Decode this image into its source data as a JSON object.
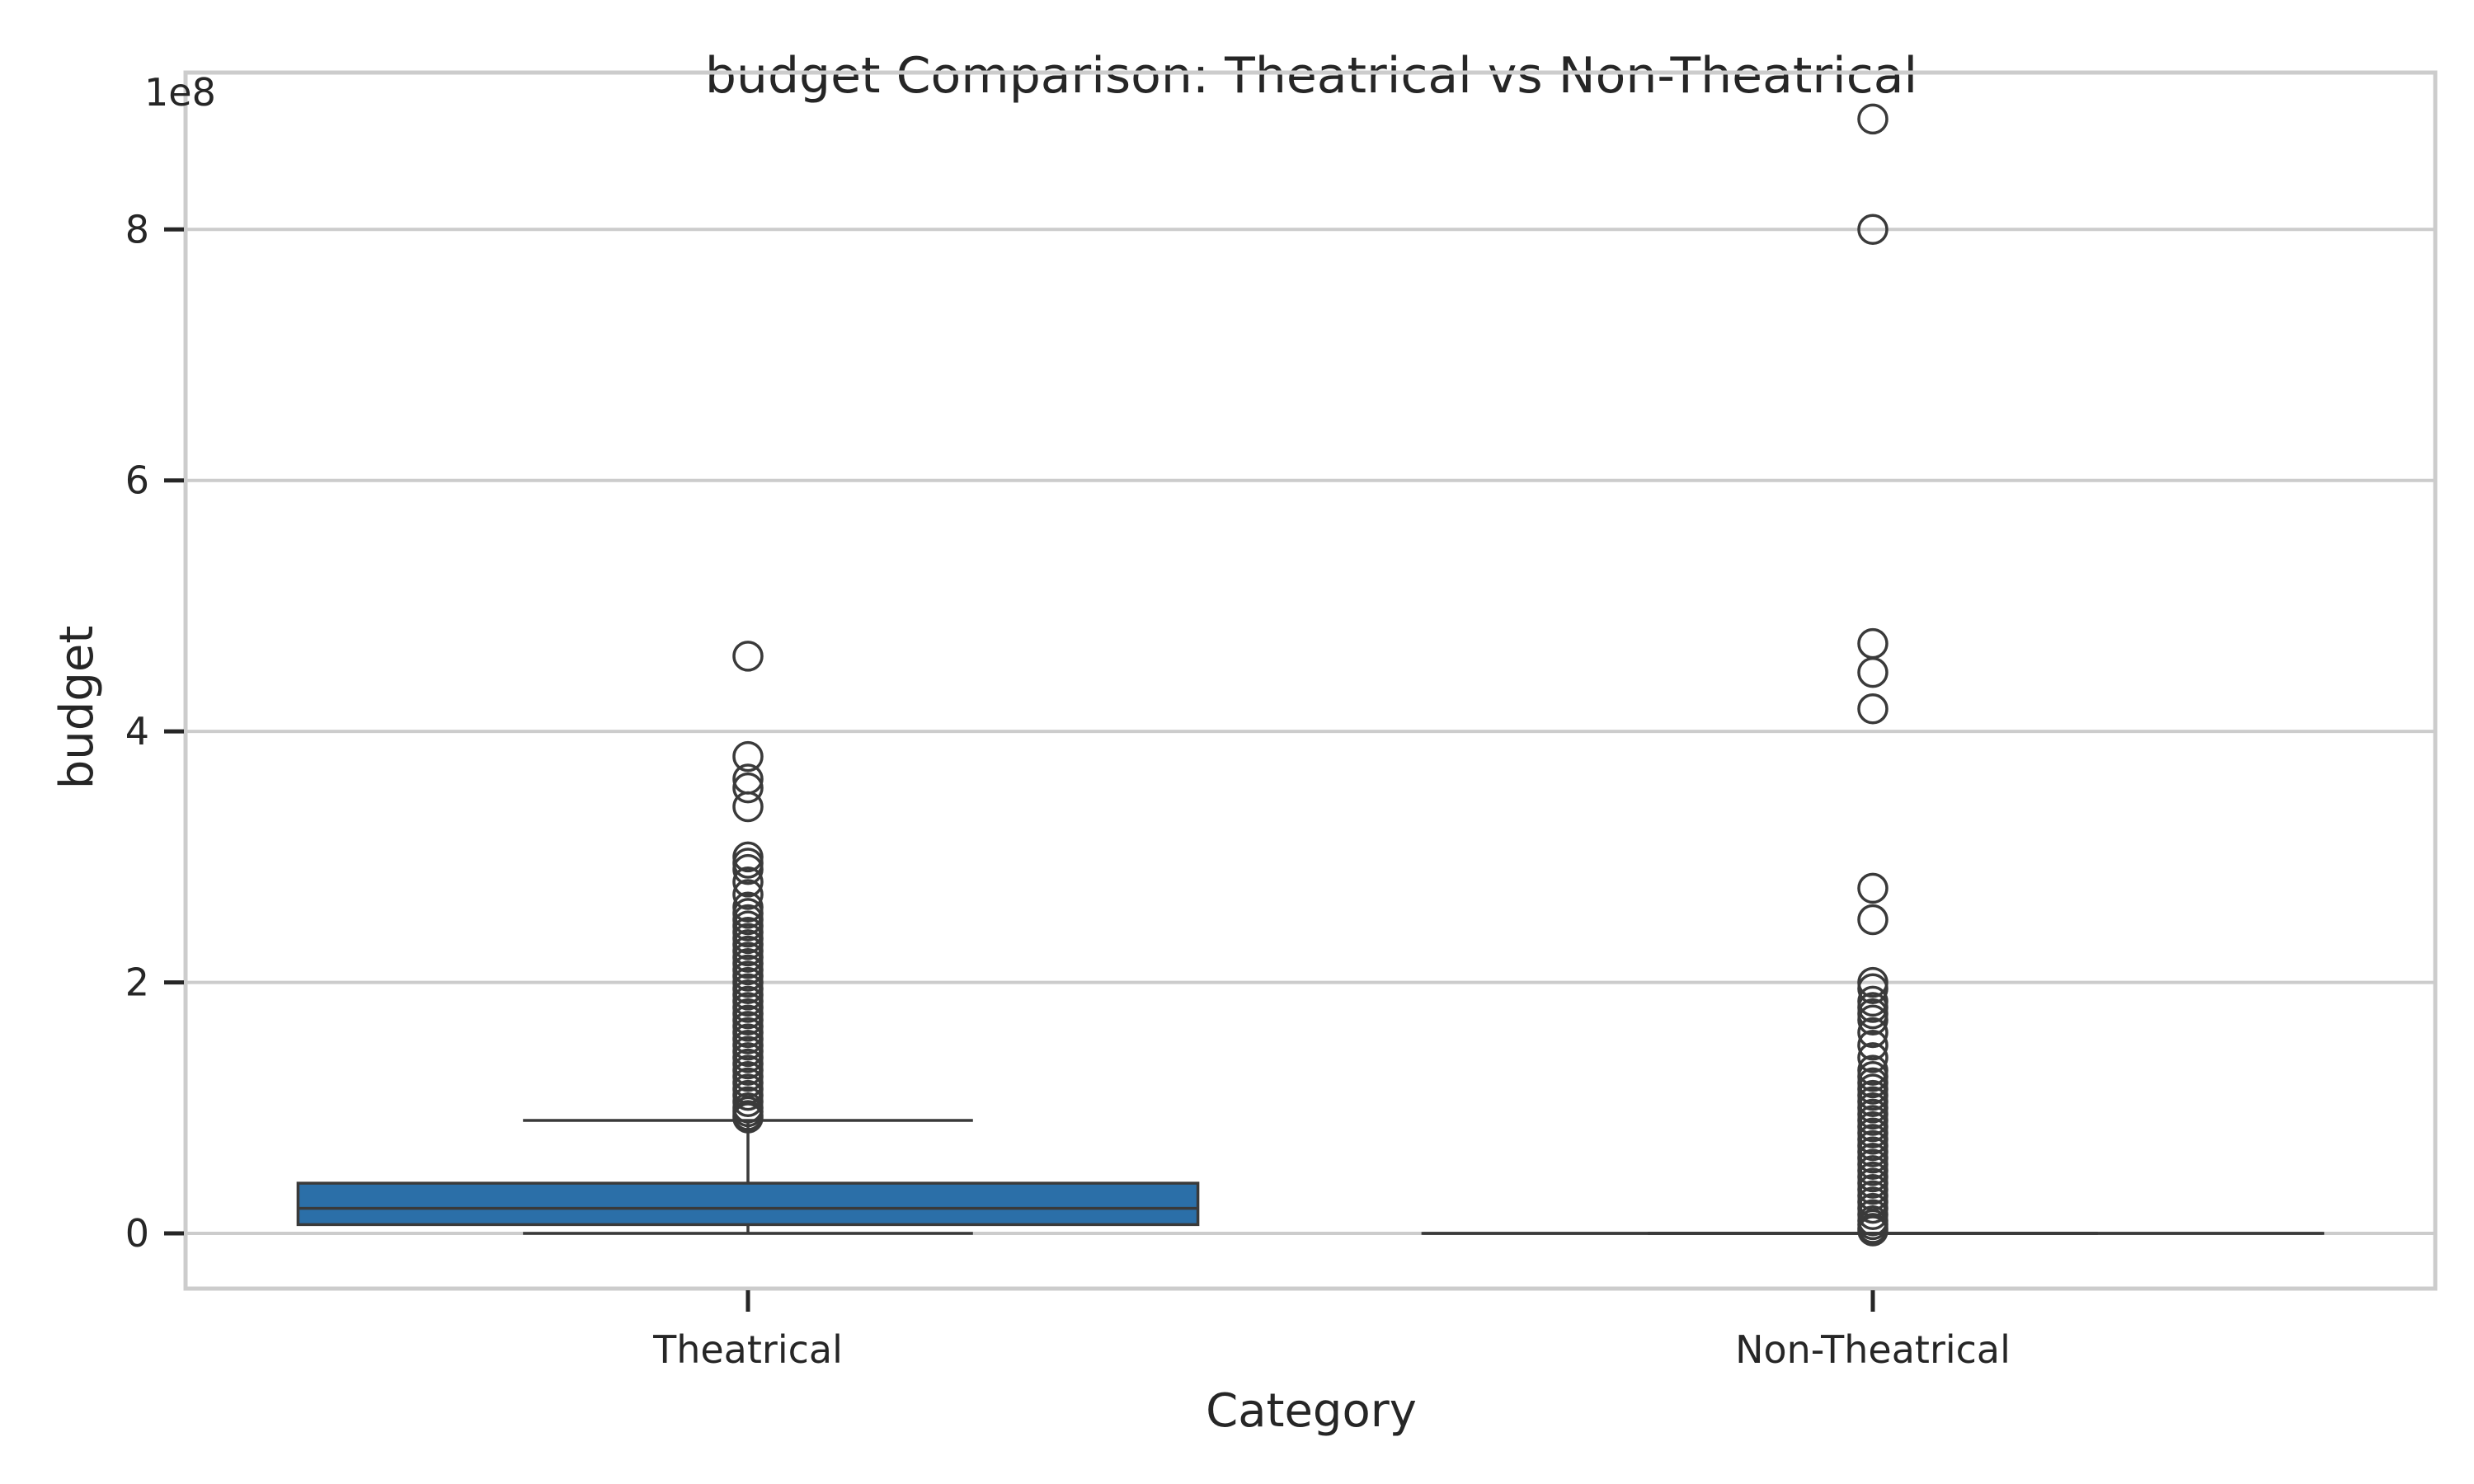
{
  "chart_data": {
    "type": "box",
    "title": "budget Comparison: Theatrical vs Non-Theatrical",
    "xlabel": "Category",
    "ylabel": "budget",
    "y_offset_label": "1e8",
    "y_scale": 100000000,
    "ylim": [
      -0.44,
      9.25
    ],
    "yticks": [
      0,
      2,
      4,
      6,
      8
    ],
    "grid": true,
    "categories": [
      "Theatrical",
      "Non-Theatrical"
    ],
    "boxes": [
      {
        "category": "Theatrical",
        "color": "#2b6fa8",
        "min": 0.0,
        "q1": 0.07,
        "median": 0.2,
        "q3": 0.4,
        "max": 0.9,
        "fliers": [
          4.6,
          3.8,
          3.62,
          3.55,
          3.4,
          3.0,
          2.95,
          2.9,
          2.8,
          2.7,
          2.6,
          2.55,
          2.5,
          2.45,
          2.4,
          2.35,
          2.3,
          2.25,
          2.2,
          2.15,
          2.1,
          2.05,
          2.0,
          1.95,
          1.9,
          1.85,
          1.8,
          1.75,
          1.7,
          1.65,
          1.6,
          1.55,
          1.5,
          1.45,
          1.4,
          1.35,
          1.3,
          1.25,
          1.2,
          1.15,
          1.1,
          1.05,
          1.0,
          0.97,
          0.94,
          0.92
        ]
      },
      {
        "category": "Non-Theatrical",
        "color": "#2b6fa8",
        "min": 0.0,
        "q1": 0.0,
        "median": 0.0,
        "q3": 0.0,
        "max": 0.0,
        "fliers": [
          8.88,
          8.0,
          4.7,
          4.47,
          4.18,
          2.75,
          2.5,
          2.0,
          1.95,
          1.85,
          1.8,
          1.75,
          1.7,
          1.6,
          1.5,
          1.4,
          1.3,
          1.25,
          1.2,
          1.15,
          1.1,
          1.05,
          1.0,
          0.95,
          0.9,
          0.85,
          0.8,
          0.75,
          0.7,
          0.65,
          0.6,
          0.55,
          0.5,
          0.45,
          0.4,
          0.35,
          0.3,
          0.25,
          0.2,
          0.15,
          0.1,
          0.07,
          0.04,
          0.02
        ]
      }
    ]
  }
}
